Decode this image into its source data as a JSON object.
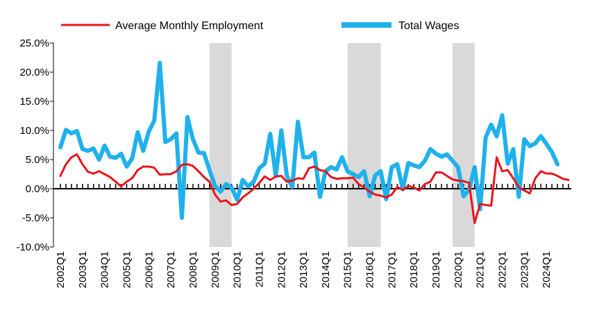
{
  "chart_data": {
    "type": "line",
    "title": "",
    "xlabel": "",
    "ylabel": "",
    "ylim": [
      -10,
      25
    ],
    "y_ticks": [
      -10,
      -5,
      0,
      5,
      10,
      15,
      20,
      25
    ],
    "y_tick_labels": [
      "-10.0%",
      "-5.0%",
      "0.0%",
      "5.0%",
      "10.0%",
      "15.0%",
      "20.0%",
      "25.0%"
    ],
    "x_start": "2002Q1",
    "x_labels": [
      "2002Q1",
      "2003Q1",
      "2004Q1",
      "2005Q1",
      "2006Q1",
      "2007Q1",
      "2008Q1",
      "2009Q1",
      "2010Q1",
      "2011Q1",
      "2012Q1",
      "2013Q1",
      "2014Q1",
      "2015Q1",
      "2016Q1",
      "2017Q1",
      "2018Q1",
      "2019Q1",
      "2020Q1",
      "2021Q1",
      "2022Q1",
      "2023Q1",
      "2024Q1"
    ],
    "recession_shading": [
      {
        "start": "2008Q4",
        "end": "2009Q4"
      },
      {
        "start": "2015Q1",
        "end": "2016Q3"
      },
      {
        "start": "2019Q4",
        "end": "2020Q4"
      }
    ],
    "legend_position": "top",
    "series": [
      {
        "name": "Average Monthly Employment",
        "color": "#e8141c",
        "values": [
          2.2,
          4.2,
          5.4,
          5.9,
          4.2,
          2.9,
          2.6,
          3.0,
          2.5,
          2.0,
          1.2,
          0.4,
          1.2,
          1.8,
          3.2,
          3.8,
          3.8,
          3.6,
          2.4,
          2.5,
          2.5,
          3.0,
          4.1,
          4.2,
          3.9,
          3.0,
          2.0,
          1.2,
          -1.0,
          -2.2,
          -2.0,
          -2.8,
          -2.6,
          -1.5,
          -0.8,
          0.0,
          1.0,
          2.1,
          1.5,
          2.1,
          2.2,
          1.2,
          1.4,
          1.8,
          1.7,
          3.5,
          3.8,
          3.2,
          3.0,
          2.0,
          1.7,
          1.8,
          1.8,
          1.9,
          0.8,
          0.2,
          -0.5,
          -1.0,
          -1.2,
          -1.5,
          -1.0,
          0.3,
          -0.2,
          0.5,
          0.2,
          -0.3,
          0.8,
          1.2,
          2.8,
          2.8,
          2.2,
          1.6,
          1.4,
          1.3,
          1.0,
          -5.9,
          -2.6,
          -2.8,
          -2.9,
          5.4,
          3.0,
          3.2,
          1.8,
          0.2,
          -0.3,
          -0.8,
          1.8,
          3.0,
          2.6,
          2.6,
          2.2,
          1.7,
          1.5
        ]
      },
      {
        "name": "Total Wages",
        "color": "#1fb1ec",
        "values": [
          7.1,
          10.1,
          9.5,
          9.9,
          6.8,
          6.5,
          6.9,
          5.0,
          7.4,
          5.5,
          5.3,
          6.0,
          3.8,
          5.2,
          9.7,
          6.5,
          9.8,
          11.7,
          21.6,
          8.0,
          8.5,
          9.5,
          -5.0,
          12.3,
          8.5,
          6.2,
          6.1,
          3.2,
          0.5,
          -0.5,
          0.8,
          0.2,
          -1.9,
          1.5,
          0.4,
          1.2,
          3.5,
          4.3,
          9.4,
          2.2,
          10.0,
          2.2,
          0.3,
          11.5,
          5.4,
          5.4,
          6.2,
          -1.4,
          3.0,
          3.7,
          3.3,
          5.4,
          3.0,
          2.5,
          2.0,
          3.0,
          -1.3,
          2.3,
          3.0,
          -1.8,
          3.7,
          4.2,
          -0.1,
          4.4,
          4.0,
          3.7,
          4.8,
          6.8,
          6.0,
          5.5,
          5.9,
          4.8,
          3.7,
          -1.3,
          -0.2,
          3.7,
          -3.5,
          8.8,
          11.0,
          9.0,
          12.6,
          4.3,
          6.8,
          -1.4,
          8.5,
          7.3,
          7.8,
          9.0,
          7.7,
          6.3,
          4.2
        ]
      }
    ]
  }
}
